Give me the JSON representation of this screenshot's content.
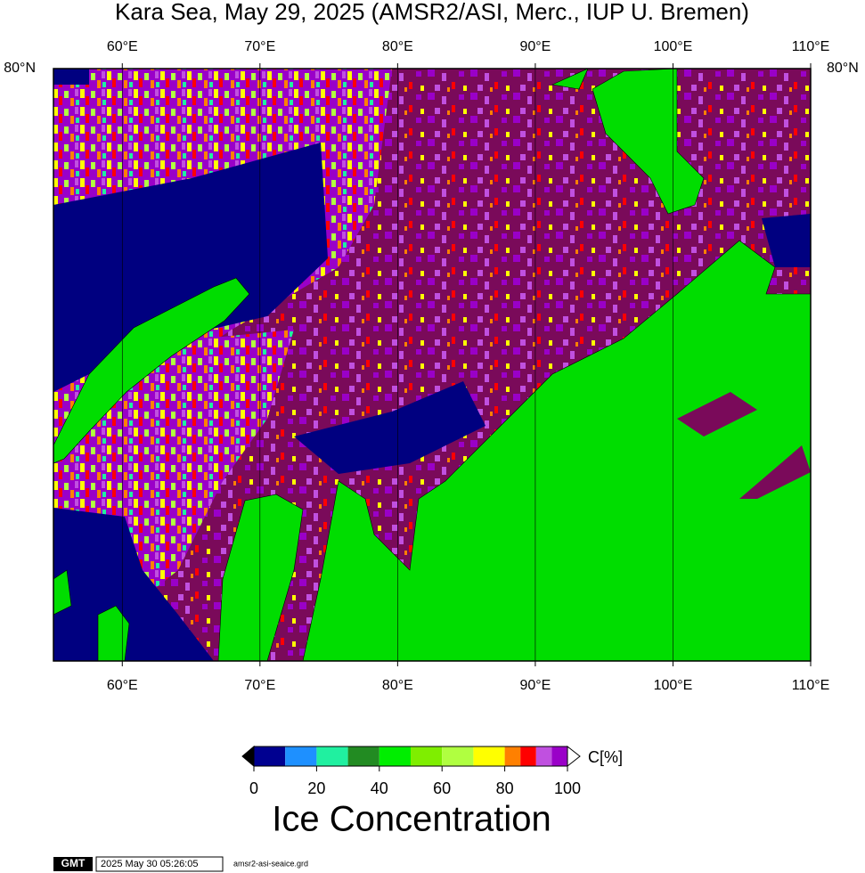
{
  "title": "Kara Sea, May 29, 2025 (AMSR2/ASI, Merc., IUP U. Bremen)",
  "map": {
    "lonlim": [
      55,
      110
    ],
    "lon_ticks": [
      {
        "value": 60,
        "label": "60°E"
      },
      {
        "value": 70,
        "label": "70°E"
      },
      {
        "value": 80,
        "label": "80°E"
      },
      {
        "value": 90,
        "label": "90°E"
      },
      {
        "value": 100,
        "label": "100°E"
      },
      {
        "value": 110,
        "label": "110°E"
      }
    ],
    "lat_label": "80°N"
  },
  "colorbar": {
    "bins": [
      0,
      10,
      20,
      30,
      40,
      50,
      60,
      70,
      80,
      85,
      90,
      95,
      100
    ],
    "colors": [
      "#000090",
      "#1e90ff",
      "#20f0a0",
      "#228b22",
      "#00ee00",
      "#7fee00",
      "#b0ff40",
      "#ffff00",
      "#ff8000",
      "#ff0000",
      "#c050e0",
      "#9a00c8"
    ],
    "ticks": [
      0,
      20,
      40,
      60,
      80,
      100
    ],
    "unit": "C[%]",
    "label": "Ice Concentration"
  },
  "footer": {
    "logo": "GMT",
    "timestamp": "2025 May 30 05:26:05",
    "file": "amsr2-asi-seaice.grd"
  }
}
